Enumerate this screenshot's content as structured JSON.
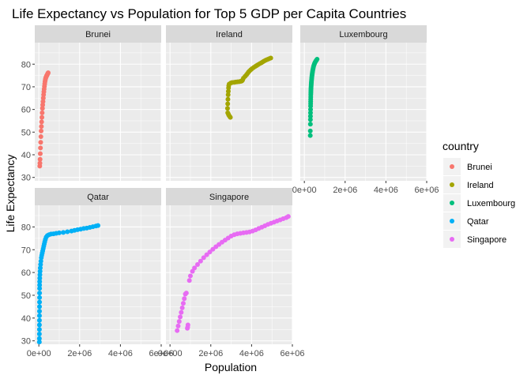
{
  "chart_data": {
    "type": "scatter",
    "title": "Life Expectancy vs Population for Top 5 GDP per Capita Countries",
    "xlabel": "Population",
    "ylabel": "Life Expectancy",
    "xlim": [
      -200000,
      6000000
    ],
    "ylim": [
      28.5,
      89.5
    ],
    "x_ticks": [
      0,
      2000000,
      4000000,
      6000000
    ],
    "x_tick_labels": [
      "0e+00",
      "2e+06",
      "4e+06",
      "6e+06"
    ],
    "y_ticks": [
      30,
      40,
      50,
      60,
      70,
      80
    ],
    "y_tick_labels": [
      "30",
      "40",
      "50",
      "60",
      "70",
      "80"
    ],
    "grid": true,
    "facet_layout": "3 columns x 2 rows, shared axes",
    "legend": {
      "title": "country",
      "position": "right",
      "entries": [
        "Brunei",
        "Ireland",
        "Luxembourg",
        "Qatar",
        "Singapore"
      ]
    },
    "series": [
      {
        "name": "Brunei",
        "color": "#F8766D",
        "x": [
          45000,
          53000,
          60000,
          70000,
          79000,
          90000,
          100000,
          112000,
          124000,
          136000,
          150000,
          163000,
          177000,
          190000,
          204000,
          218000,
          232000,
          246000,
          260000,
          274000,
          288000,
          302000,
          315000,
          328000,
          341000,
          354000,
          366000,
          378000,
          390000,
          402000,
          413000,
          424000,
          436000,
          447000,
          458000
        ],
        "y": [
          35.0,
          36.3,
          38.0,
          40.5,
          43.0,
          45.5,
          48.0,
          50.5,
          52.5,
          54.5,
          56.5,
          58.5,
          60.5,
          62.0,
          63.5,
          65.0,
          66.5,
          67.8,
          69.0,
          70.2,
          71.3,
          72.3,
          73.0,
          73.6,
          74.0,
          74.3,
          74.6,
          74.8,
          75.0,
          75.2,
          75.4,
          75.6,
          75.8,
          76.0,
          76.2
        ]
      },
      {
        "name": "Ireland",
        "color": "#A3A500",
        "x": [
          2960000,
          2920000,
          2880000,
          2860000,
          2830000,
          2820000,
          2830000,
          2840000,
          2850000,
          2860000,
          2870000,
          2880000,
          2900000,
          2980000,
          3050000,
          3150000,
          3230000,
          3310000,
          3400000,
          3460000,
          3500000,
          3520000,
          3530000,
          3560000,
          3600000,
          3680000,
          3750000,
          3800000,
          3850000,
          3900000,
          3960000,
          4020000,
          4100000,
          4180000,
          4250000,
          4320000,
          4400000,
          4480000,
          4550000,
          4620000,
          4700000,
          4780000,
          4860000,
          4940000
        ],
        "y": [
          56.5,
          57.0,
          57.5,
          58.0,
          58.5,
          60.5,
          62.5,
          64.5,
          66.5,
          68.0,
          69.5,
          70.5,
          71.2,
          71.7,
          71.9,
          72.0,
          72.1,
          72.2,
          72.3,
          72.4,
          72.5,
          72.6,
          72.7,
          73.0,
          73.8,
          74.6,
          75.3,
          75.9,
          76.5,
          77.0,
          77.5,
          78.0,
          78.5,
          79.0,
          79.4,
          79.8,
          80.2,
          80.6,
          81.0,
          81.4,
          81.8,
          82.1,
          82.4,
          82.7
        ]
      },
      {
        "name": "Luxembourg",
        "color": "#00BF7D",
        "x": [
          290000,
          292000,
          296000,
          298000,
          300000,
          302000,
          304000,
          306000,
          308000,
          310000,
          312000,
          314000,
          316000,
          318000,
          320000,
          322000,
          325000,
          328000,
          332000,
          336000,
          340000,
          345000,
          350000,
          356000,
          362000,
          368000,
          376000,
          384000,
          394000,
          404000,
          415000,
          428000,
          442000,
          458000,
          476000,
          496000,
          516000,
          540000,
          565000,
          595000,
          625000
        ],
        "y": [
          48.5,
          50.5,
          53.5,
          55.5,
          57.0,
          58.5,
          60.0,
          61.5,
          62.5,
          63.5,
          64.5,
          65.5,
          66.5,
          67.2,
          67.8,
          68.4,
          69.0,
          69.6,
          70.2,
          70.8,
          71.4,
          72.0,
          72.6,
          73.2,
          73.8,
          74.4,
          75.0,
          75.6,
          76.2,
          76.8,
          77.4,
          78.0,
          78.6,
          79.2,
          79.7,
          80.2,
          80.6,
          81.0,
          81.4,
          81.8,
          82.2
        ]
      },
      {
        "name": "Qatar",
        "color": "#00B0F6",
        "x": [
          25000,
          26000,
          27000,
          28000,
          29000,
          30000,
          31000,
          32000,
          33000,
          34000,
          35000,
          36000,
          37000,
          38000,
          40000,
          45000,
          52000,
          60000,
          70000,
          85000,
          100000,
          120000,
          140000,
          165000,
          190000,
          215000,
          240000,
          265000,
          290000,
          320000,
          360000,
          420000,
          500000,
          600000,
          720000,
          850000,
          1000000,
          1200000,
          1400000,
          1600000,
          1750000,
          1900000,
          2050000,
          2200000,
          2350000,
          2500000,
          2650000,
          2800000,
          2900000
        ],
        "y": [
          29.5,
          31.0,
          33.0,
          35.0,
          37.0,
          39.0,
          41.0,
          43.0,
          45.0,
          47.0,
          49.0,
          51.0,
          53.0,
          54.5,
          56.0,
          57.5,
          59.0,
          60.5,
          62.0,
          63.5,
          65.0,
          66.5,
          67.5,
          68.5,
          69.5,
          70.5,
          71.5,
          72.5,
          73.5,
          74.5,
          75.5,
          76.2,
          76.6,
          76.9,
          77.0,
          77.2,
          77.4,
          77.6,
          77.9,
          78.2,
          78.5,
          78.8,
          79.0,
          79.3,
          79.5,
          79.8,
          80.1,
          80.4,
          80.6
        ]
      },
      {
        "name": "Singapore",
        "color": "#E76BF3",
        "x": [
          350000,
          400000,
          450000,
          500000,
          550000,
          600000,
          650000,
          700000,
          750000,
          800000,
          850000,
          870000,
          880000,
          950000,
          1000000,
          1100000,
          1200000,
          1350000,
          1500000,
          1650000,
          1800000,
          1950000,
          2100000,
          2250000,
          2400000,
          2550000,
          2700000,
          2850000,
          3000000,
          3150000,
          3300000,
          3450000,
          3600000,
          3750000,
          3900000,
          4050000,
          4200000,
          4350000,
          4500000,
          4650000,
          4800000,
          4950000,
          5100000,
          5250000,
          5400000,
          5550000,
          5700000,
          5800000
        ],
        "y": [
          34.5,
          36.5,
          38.5,
          40.5,
          42.5,
          44.5,
          46.5,
          48.5,
          50.5,
          51.0,
          35.5,
          36.0,
          37.0,
          56.5,
          58.5,
          60.5,
          62.0,
          63.5,
          65.0,
          66.5,
          67.8,
          69.0,
          70.2,
          71.3,
          72.3,
          73.3,
          74.2,
          75.1,
          76.0,
          76.6,
          77.0,
          77.2,
          77.4,
          77.6,
          77.8,
          78.2,
          78.7,
          79.3,
          79.9,
          80.5,
          81.1,
          81.6,
          82.1,
          82.6,
          83.1,
          83.6,
          84.1,
          84.6
        ]
      }
    ]
  }
}
